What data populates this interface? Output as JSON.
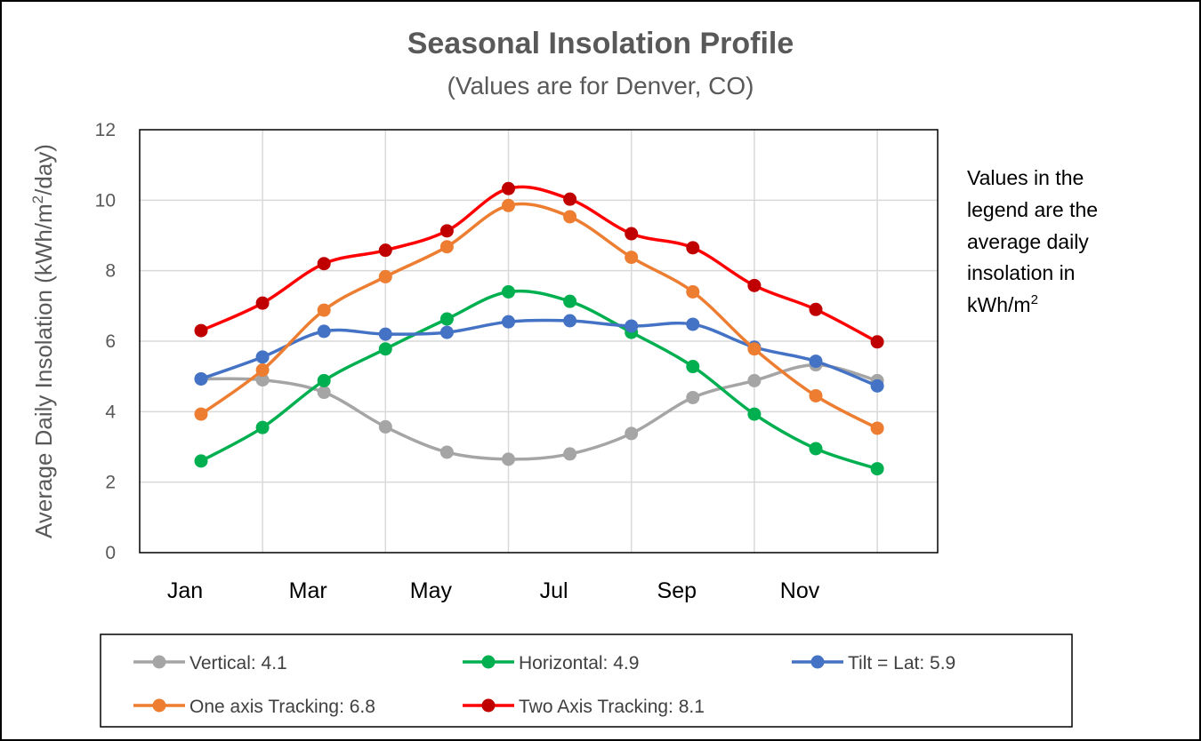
{
  "chart_data": {
    "type": "line",
    "title": "Seasonal Insolation Profile",
    "subtitle": "(Values are for Denver, CO)",
    "xlabel": "",
    "ylabel_prefix": "Average Daily Insolation (kWh/m",
    "ylabel_sup": "2",
    "ylabel_suffix": "/day)",
    "ylim": [
      0,
      12
    ],
    "yticks": [
      "0",
      "2",
      "4",
      "6",
      "8",
      "10",
      "12"
    ],
    "grid": true,
    "categories": [
      "Jan",
      "Feb",
      "Mar",
      "Apr",
      "May",
      "Jun",
      "Jul",
      "Aug",
      "Sep",
      "Oct",
      "Nov",
      "Dec"
    ],
    "xtick_labels": [
      "Jan",
      "",
      "Mar",
      "",
      "May",
      "",
      "Jul",
      "",
      "Sep",
      "",
      "Nov",
      ""
    ],
    "legend_position": "bottom",
    "series": [
      {
        "name": "Vertical",
        "legend_label": "Vertical: 4.1",
        "color": "#A5A5A5",
        "values": [
          4.93,
          4.9,
          4.55,
          3.57,
          2.85,
          2.65,
          2.8,
          3.38,
          4.4,
          4.88,
          5.33,
          4.88
        ]
      },
      {
        "name": "Horizontal",
        "legend_label": "Horizontal: 4.9",
        "color": "#00B050",
        "values": [
          2.6,
          3.55,
          4.88,
          5.78,
          6.63,
          7.4,
          7.13,
          6.25,
          5.28,
          3.93,
          2.95,
          2.38
        ]
      },
      {
        "name": "Tilt = Lat",
        "legend_label": "Tilt = Lat: 5.9",
        "color": "#4472C4",
        "values": [
          4.93,
          5.55,
          6.28,
          6.2,
          6.25,
          6.55,
          6.58,
          6.43,
          6.48,
          5.83,
          5.43,
          4.73
        ]
      },
      {
        "name": "One axis Tracking",
        "legend_label": "One axis Tracking: 6.8",
        "color": "#ED7D31",
        "values": [
          3.93,
          5.18,
          6.88,
          7.83,
          8.68,
          9.85,
          9.53,
          8.38,
          7.4,
          5.78,
          4.45,
          3.53
        ]
      },
      {
        "name": "Two Axis Tracking",
        "legend_label": "Two Axis Tracking: 8.1",
        "color": "#FF0000",
        "marker_color": "#C00000",
        "values": [
          6.3,
          7.08,
          8.2,
          8.58,
          9.13,
          10.33,
          10.03,
          9.05,
          8.65,
          7.58,
          6.9,
          5.98
        ]
      }
    ],
    "annotation": {
      "lines": [
        "Values in the",
        "legend are the",
        "average daily",
        "insolation in"
      ],
      "last_prefix": "kWh/m",
      "last_sup": "2"
    }
  }
}
